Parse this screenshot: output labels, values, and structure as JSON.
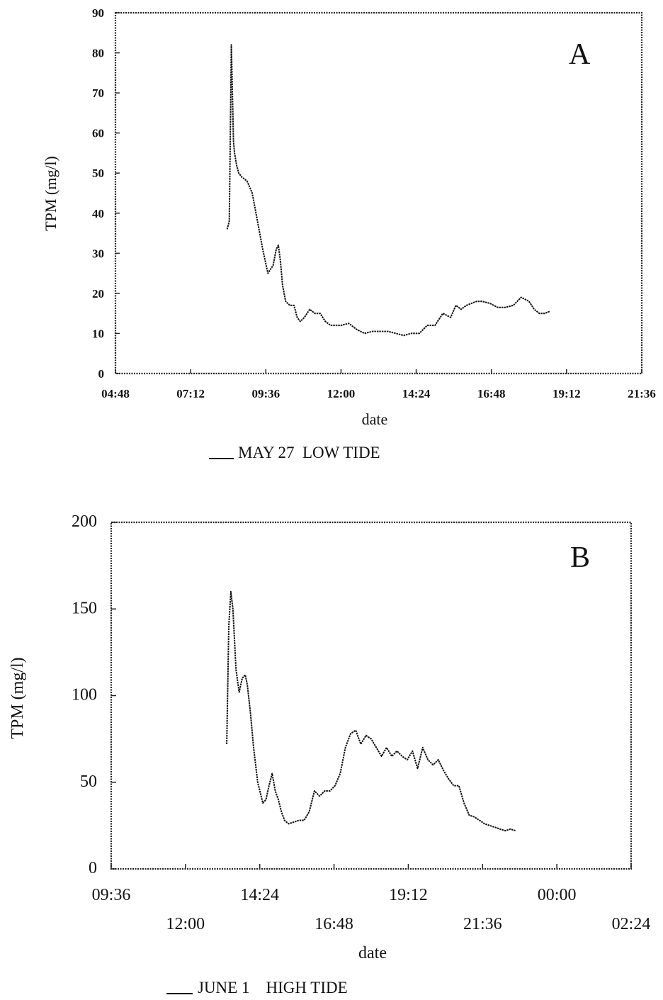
{
  "chart_data": [
    {
      "type": "line",
      "panel_label": "A",
      "xlabel": "date",
      "ylabel": "TPM (mg/l)",
      "x_ticks": [
        "04:48",
        "07:12",
        "09:36",
        "12:00",
        "14:24",
        "16:48",
        "19:12",
        "21:36"
      ],
      "y_ticks": [
        "0",
        "10",
        "20",
        "30",
        "40",
        "50",
        "60",
        "70",
        "80",
        "90"
      ],
      "xlim": [
        "04:48",
        "21:36"
      ],
      "ylim": [
        0,
        90
      ],
      "grid": false,
      "legend_position": "bottom",
      "series": [
        {
          "name": "MAY 27  LOW TIDE",
          "x": [
            "08:22",
            "08:26",
            "08:28",
            "08:30",
            "08:32",
            "08:34",
            "08:36",
            "08:40",
            "08:44",
            "08:50",
            "09:00",
            "09:10",
            "09:20",
            "09:30",
            "09:40",
            "09:50",
            "09:56",
            "10:00",
            "10:04",
            "10:08",
            "10:14",
            "10:22",
            "10:30",
            "10:36",
            "10:42",
            "10:50",
            "11:00",
            "11:10",
            "11:20",
            "11:30",
            "11:40",
            "11:50",
            "12:00",
            "12:15",
            "12:30",
            "12:45",
            "13:00",
            "13:15",
            "13:30",
            "13:45",
            "14:00",
            "14:15",
            "14:30",
            "14:45",
            "15:00",
            "15:15",
            "15:30",
            "15:40",
            "15:50",
            "16:00",
            "16:10",
            "16:20",
            "16:30",
            "16:45",
            "17:00",
            "17:15",
            "17:30",
            "17:45",
            "18:00",
            "18:10",
            "18:20",
            "18:30",
            "18:40"
          ],
          "values": [
            36,
            38,
            60,
            82,
            70,
            58,
            55,
            52,
            50,
            49,
            48,
            45,
            38,
            31,
            25,
            27,
            31,
            32,
            28,
            22,
            18,
            17,
            17,
            14,
            13,
            14,
            16,
            15,
            15,
            13,
            12,
            12,
            12,
            12.5,
            11,
            10,
            10.5,
            10.5,
            10.5,
            10,
            9.5,
            10,
            10,
            12,
            12,
            15,
            14,
            17,
            16,
            17,
            17.5,
            18,
            18,
            17.5,
            16.5,
            16.5,
            17,
            19,
            18,
            16,
            15,
            15,
            15.5
          ]
        }
      ]
    },
    {
      "type": "line",
      "panel_label": "B",
      "xlabel": "date",
      "ylabel": "TPM (mg/l)",
      "x_ticks": [
        "09:36",
        "12:00",
        "14:24",
        "16:48",
        "19:12",
        "21:36",
        "00:00",
        "02:24"
      ],
      "y_ticks": [
        "0",
        "50",
        "100",
        "150",
        "200"
      ],
      "xlim": [
        "09:36",
        "02:24"
      ],
      "ylim": [
        0,
        200
      ],
      "grid": false,
      "legend_position": "bottom",
      "series": [
        {
          "name": "JUNE 1    HIGH TIDE",
          "x": [
            "13:20",
            "13:24",
            "13:28",
            "13:32",
            "13:38",
            "13:44",
            "13:50",
            "13:56",
            "14:00",
            "14:06",
            "14:12",
            "14:20",
            "14:30",
            "14:36",
            "14:42",
            "14:48",
            "14:54",
            "15:00",
            "15:06",
            "15:12",
            "15:20",
            "15:30",
            "15:40",
            "15:50",
            "16:00",
            "16:10",
            "16:20",
            "16:30",
            "16:40",
            "16:50",
            "17:00",
            "17:10",
            "17:20",
            "17:30",
            "17:40",
            "17:50",
            "18:00",
            "18:10",
            "18:20",
            "18:30",
            "18:40",
            "18:50",
            "19:00",
            "19:10",
            "19:20",
            "19:30",
            "19:40",
            "19:50",
            "20:00",
            "20:10",
            "20:20",
            "20:30",
            "20:40",
            "20:50",
            "21:00",
            "21:10",
            "21:20",
            "21:30",
            "21:40",
            "21:50",
            "22:00",
            "22:10",
            "22:20",
            "22:30",
            "22:40"
          ],
          "values": [
            72,
            140,
            160,
            150,
            115,
            102,
            110,
            112,
            106,
            90,
            70,
            50,
            38,
            40,
            48,
            55,
            45,
            40,
            33,
            28,
            26,
            27,
            28,
            28,
            33,
            45,
            42,
            45,
            45,
            48,
            55,
            70,
            78,
            80,
            72,
            77,
            75,
            70,
            65,
            70,
            65,
            68,
            65,
            63,
            68,
            58,
            70,
            63,
            60,
            63,
            57,
            52,
            48,
            48,
            38,
            31,
            30,
            28,
            26,
            25,
            24,
            23,
            22,
            23,
            22
          ]
        }
      ]
    }
  ]
}
